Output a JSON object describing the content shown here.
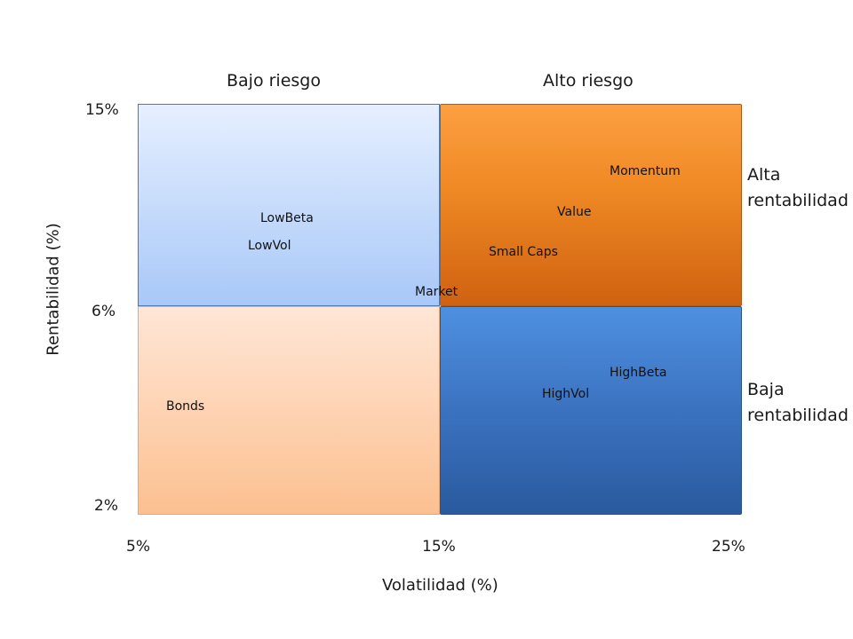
{
  "columns": {
    "left": "Bajo riesgo",
    "right": "Alto riesgo"
  },
  "rows": {
    "top": [
      "Alta",
      "rentabilidad"
    ],
    "bottom": [
      "Baja",
      "rentabilidad"
    ]
  },
  "x_axis": {
    "title": "Volatilidad (%)",
    "ticks": [
      "5%",
      "15%",
      "25%"
    ]
  },
  "y_axis": {
    "title": "Rentabilidad (%)",
    "ticks": [
      "15%",
      "6%",
      "2%"
    ]
  },
  "quadrant_colors": {
    "top_left": "#a8c8f8",
    "top_right": "#f08a25",
    "bottom_left": "#fcc090",
    "bottom_right": "#3b72c0"
  },
  "items": {
    "lowbeta": "LowBeta",
    "lowvol": "LowVol",
    "market": "Market",
    "momentum": "Momentum",
    "value": "Value",
    "smallcaps": "Small Caps",
    "highbeta": "HighBeta",
    "highvol": "HighVol",
    "bonds": "Bonds"
  }
}
